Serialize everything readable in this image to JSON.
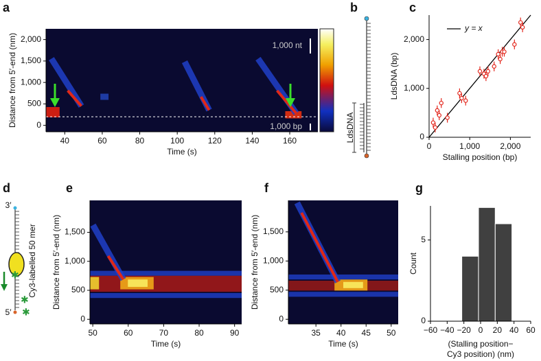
{
  "chart_data": [
    {
      "type": "kymograph",
      "panel": "a",
      "xlabel": "Time (s)",
      "ylabel": "Distance from 5′-end (nm)",
      "xlim": [
        30,
        175
      ],
      "xticks": [
        40,
        60,
        80,
        100,
        120,
        140,
        160
      ],
      "ylim": [
        -150,
        2250
      ],
      "yticks": [
        0,
        500,
        {
          "value": 1000,
          "label": "1,000"
        },
        {
          "value": 1500,
          "label": "1,500"
        },
        {
          "value": 2000,
          "label": "2,000"
        }
      ],
      "reference_line": 200,
      "annotations": [
        "1,000 nt",
        "1,000 bp"
      ]
    },
    {
      "type": "scatter",
      "panel": "c",
      "xlabel": "Stalling position (bp)",
      "ylabel": "LdsDNA (bp)",
      "legend": "y = x",
      "color": "#e3261c",
      "xlim": [
        0,
        2500
      ],
      "xticks": [
        0,
        {
          "value": 1000,
          "label": "1,000"
        },
        {
          "value": 2000,
          "label": "2,000"
        }
      ],
      "ylim": [
        0,
        2500
      ],
      "yticks": [
        0,
        {
          "value": 1000,
          "label": "1,000"
        },
        {
          "value": 2000,
          "label": "2,000"
        }
      ],
      "x": [
        100,
        150,
        200,
        250,
        300,
        450,
        750,
        800,
        900,
        1250,
        1350,
        1400,
        1450,
        1600,
        1700,
        1750,
        1800,
        1850,
        2100,
        2250,
        2300
      ],
      "values": [
        300,
        200,
        550,
        450,
        700,
        400,
        900,
        800,
        750,
        1350,
        1300,
        1250,
        1350,
        1450,
        1700,
        1600,
        1750,
        1750,
        1900,
        2350,
        2250
      ],
      "errors": [
        100,
        100,
        100,
        100,
        100,
        100,
        100,
        100,
        100,
        100,
        100,
        100,
        100,
        100,
        100,
        100,
        100,
        100,
        100,
        100,
        100
      ]
    },
    {
      "type": "kymograph",
      "panel": "e",
      "xlabel": "Time (s)",
      "ylabel": "Distance from 5′-end (nm)",
      "xlim": [
        49.2,
        92
      ],
      "xticks": [
        50,
        60,
        70,
        80,
        90
      ],
      "ylim": [
        -80,
        2050
      ],
      "yticks": [
        0,
        500,
        {
          "value": 1000,
          "label": "1,000"
        },
        {
          "value": 1500,
          "label": "1,500"
        }
      ]
    },
    {
      "type": "kymograph",
      "panel": "f",
      "xlabel": "Time (s)",
      "ylabel": "Distance from 5′-end (nm)",
      "xlim": [
        29.5,
        51.4
      ],
      "xticks": [
        35,
        40,
        45,
        50
      ],
      "ylim": [
        -80,
        2040
      ],
      "yticks": [
        0,
        500,
        {
          "value": 1000,
          "label": "1,000"
        },
        {
          "value": 1500,
          "label": "1,500"
        }
      ]
    },
    {
      "type": "histogram",
      "panel": "g",
      "xlabel": [
        "(Stalling position−",
        "Cy3 position) (nm)"
      ],
      "ylabel": "Count",
      "color": "#404040",
      "bins": [
        -22.5,
        -2.5,
        17.5,
        37.5
      ],
      "counts": [
        4,
        7,
        6
      ],
      "xlim": [
        -60,
        60
      ],
      "xticks": [
        {
          "value": -60,
          "label": "−60"
        },
        {
          "value": -40,
          "label": "−40"
        },
        {
          "value": -20,
          "label": "−20"
        },
        0,
        20,
        40,
        60
      ],
      "ylim": [
        0,
        7.1
      ],
      "yticks": [
        0,
        5
      ]
    }
  ],
  "diagrams": {
    "b": {
      "panel": "b",
      "label": "LdsDNA"
    },
    "d": {
      "panel": "d",
      "top": "3′",
      "bottom": "5′",
      "label": "Cy3-labelled 50 mer"
    }
  }
}
